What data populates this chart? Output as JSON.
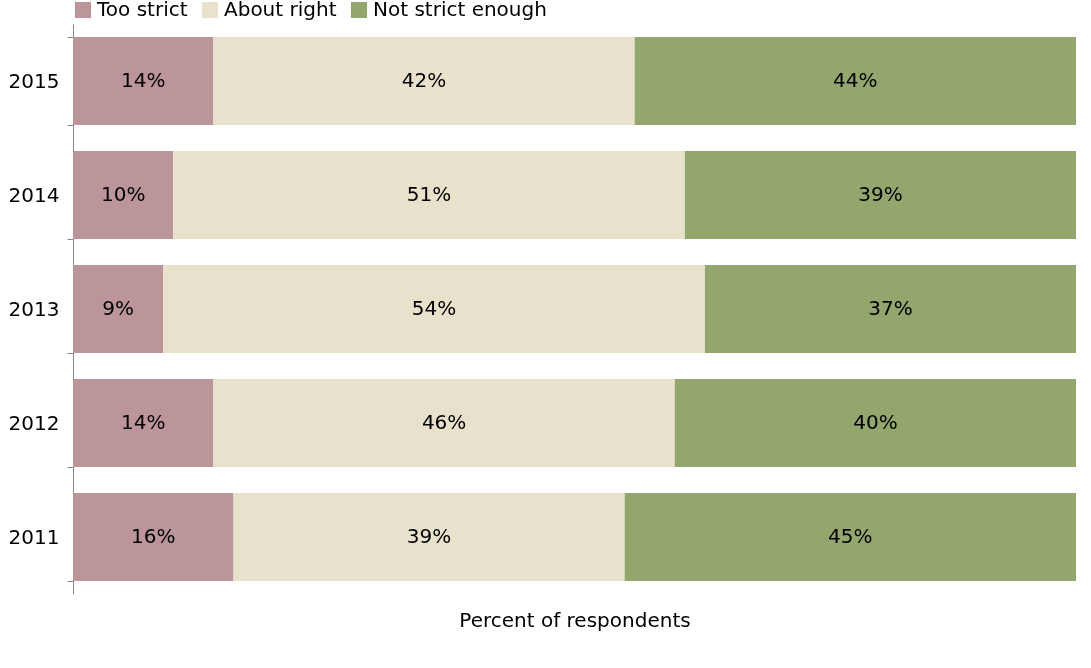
{
  "chart_data": {
    "type": "bar",
    "orientation": "horizontal",
    "stacked": true,
    "xlabel": "Percent of respondents",
    "categories": [
      "2015",
      "2014",
      "2013",
      "2012",
      "2011"
    ],
    "xlim": [
      0,
      100
    ],
    "tick_labels": "y",
    "legend": "top",
    "series": [
      {
        "name": "Too strict",
        "color": "#bc959b",
        "values": [
          14,
          10,
          9,
          14,
          16
        ],
        "value_labels": [
          "14%",
          "10%",
          "9%",
          "14%",
          "16%"
        ]
      },
      {
        "name": "About right",
        "color": "#e8e2cc",
        "values": [
          42,
          51,
          54,
          46,
          39
        ],
        "value_labels": [
          "42%",
          "51%",
          "54%",
          "46%",
          "39%"
        ]
      },
      {
        "name": "Not strict enough",
        "color": "#93a66e",
        "values": [
          44,
          39,
          37,
          40,
          45
        ],
        "value_labels": [
          "44%",
          "39%",
          "37%",
          "40%",
          "45%"
        ]
      }
    ]
  }
}
